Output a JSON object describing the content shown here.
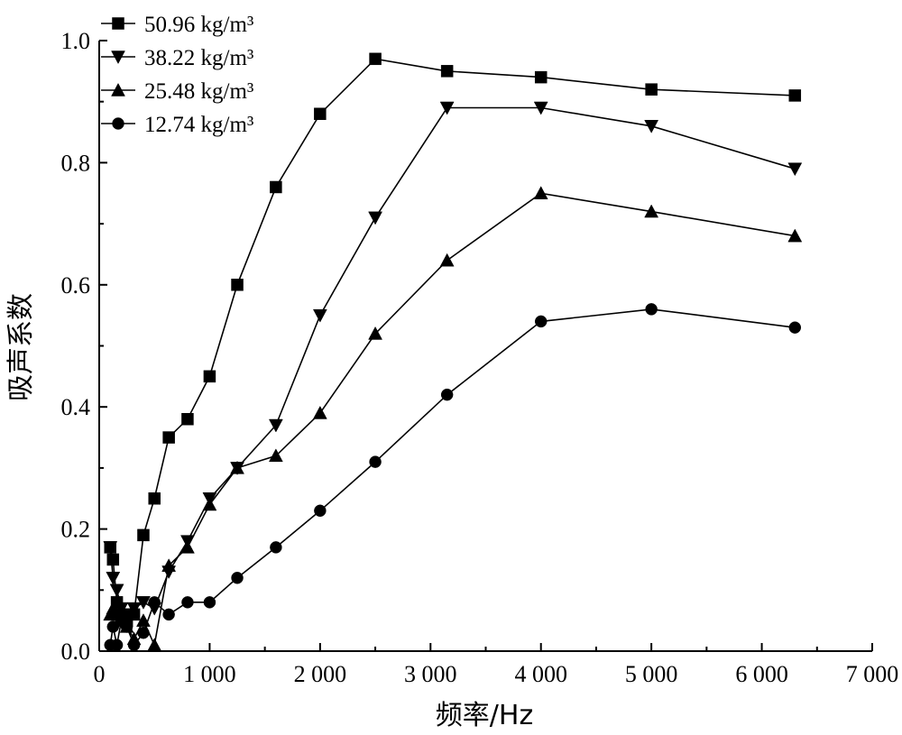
{
  "chart_data": {
    "type": "line",
    "title": "",
    "xlabel": "频率/Hz",
    "ylabel": "吸声系数",
    "xlim": [
      0,
      7000
    ],
    "ylim": [
      0,
      1.0
    ],
    "xticks": [
      0,
      1000,
      2000,
      3000,
      4000,
      5000,
      6000,
      7000
    ],
    "xtick_labels": [
      "0",
      "1 000",
      "2 000",
      "3 000",
      "4 000",
      "5 000",
      "6 000",
      "7 000"
    ],
    "yticks": [
      0,
      0.2,
      0.4,
      0.6,
      0.8,
      1.0
    ],
    "ytick_labels": [
      "0.0",
      "0.2",
      "0.4",
      "0.6",
      "0.8",
      "1.0"
    ],
    "grid": false,
    "legend_position": "top-left",
    "x": [
      100,
      125,
      160,
      200,
      250,
      315,
      400,
      500,
      630,
      800,
      1000,
      1250,
      1600,
      2000,
      2500,
      3150,
      4000,
      5000,
      6300
    ],
    "series": [
      {
        "name": "50.96 kg/m³",
        "marker": "square",
        "values": [
          0.17,
          0.15,
          0.08,
          0.06,
          0.05,
          0.06,
          0.19,
          0.25,
          0.35,
          0.38,
          0.45,
          0.6,
          0.76,
          0.88,
          0.97,
          0.95,
          0.94,
          0.92,
          0.91
        ]
      },
      {
        "name": "38.22 kg/m³",
        "marker": "triangle-down",
        "values": [
          0.17,
          0.12,
          0.1,
          0.07,
          0.06,
          0.07,
          0.08,
          0.07,
          0.13,
          0.18,
          0.25,
          0.3,
          0.37,
          0.55,
          0.71,
          0.89,
          0.89,
          0.86,
          0.79
        ]
      },
      {
        "name": "25.48 kg/m³",
        "marker": "triangle-up",
        "values": [
          0.06,
          0.07,
          0.06,
          0.05,
          0.04,
          0.02,
          0.05,
          0.01,
          0.14,
          0.17,
          0.24,
          0.3,
          0.32,
          0.39,
          0.52,
          0.64,
          0.75,
          0.72,
          0.68
        ]
      },
      {
        "name": "12.74 kg/m³",
        "marker": "circle",
        "values": [
          0.01,
          0.04,
          0.01,
          0.05,
          0.04,
          0.01,
          0.03,
          0.08,
          0.06,
          0.08,
          0.08,
          0.12,
          0.17,
          0.23,
          0.31,
          0.42,
          0.54,
          0.56,
          0.53
        ]
      }
    ]
  }
}
